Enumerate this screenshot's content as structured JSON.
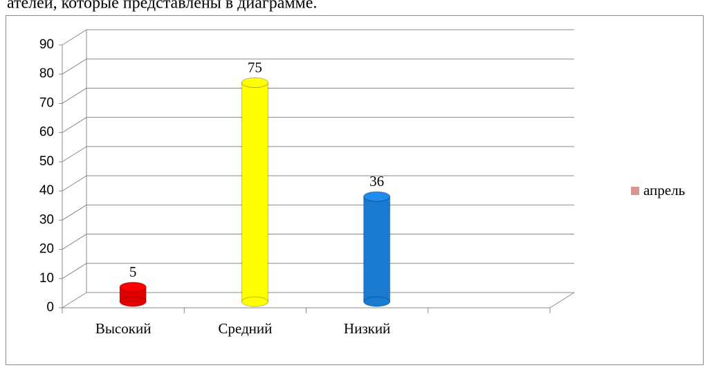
{
  "page_text": "ателей, которые представлены в диаграмме.",
  "chart_data": {
    "type": "bar3d",
    "categories": [
      "Высокий",
      "Средний",
      "Низкий",
      null
    ],
    "series": [
      {
        "name": "апрель",
        "color": "#d99694",
        "values": [
          5,
          75,
          36,
          null
        ],
        "colors": [
          "#e00000",
          "#ffff00",
          "#1a7ad0",
          null
        ]
      }
    ],
    "ylim": [
      0,
      90
    ],
    "yticks": [
      0,
      10,
      20,
      30,
      40,
      50,
      60,
      70,
      80,
      90
    ],
    "grid": true,
    "legend": "right"
  }
}
